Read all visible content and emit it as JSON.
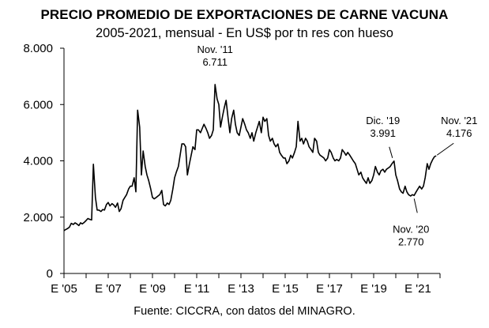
{
  "chart_data": {
    "type": "line",
    "title": "PRECIO PROMEDIO DE EXPORTACIONES DE CARNE VACUNA",
    "subtitle": "2005-2021, mensual - En US$ por tn res con hueso",
    "source": "Fuente: CICCRA, con datos del MINAGRO.",
    "xlabel": "",
    "ylabel": "",
    "ylim": [
      0,
      8000
    ],
    "xlim": [
      2005.0,
      2022.0
    ],
    "grid": false,
    "y_ticks": [
      {
        "value": 0,
        "label": "0"
      },
      {
        "value": 2000,
        "label": "2.000"
      },
      {
        "value": 4000,
        "label": "4.000"
      },
      {
        "value": 6000,
        "label": "6.000"
      },
      {
        "value": 8000,
        "label": "8.000"
      }
    ],
    "x_ticks": [
      {
        "value": 2005,
        "label": "E '05"
      },
      {
        "value": 2007,
        "label": "E '07"
      },
      {
        "value": 2009,
        "label": "E '09"
      },
      {
        "value": 2011,
        "label": "E '11"
      },
      {
        "value": 2013,
        "label": "E '13"
      },
      {
        "value": 2015,
        "label": "E '15"
      },
      {
        "value": 2017,
        "label": "E '17"
      },
      {
        "value": 2019,
        "label": "E '19"
      },
      {
        "value": 2021,
        "label": "E '21"
      }
    ],
    "annotations": [
      {
        "label": "Nov. '11",
        "value_label": "6.711",
        "x": 2011.83,
        "y": 6711,
        "pos": "above"
      },
      {
        "label": "Dic. '19",
        "value_label": "3.991",
        "x": 2019.92,
        "y": 3991,
        "pos": "above-left"
      },
      {
        "label": "Nov. '20",
        "value_label": "2.770",
        "x": 2020.83,
        "y": 2770,
        "pos": "below"
      },
      {
        "label": "Nov. '21",
        "value_label": "4.176",
        "x": 2021.83,
        "y": 4176,
        "pos": "above-right"
      }
    ],
    "series": [
      {
        "color": "#000000",
        "points": [
          [
            2005.0,
            1520
          ],
          [
            2005.08,
            1560
          ],
          [
            2005.17,
            1600
          ],
          [
            2005.25,
            1650
          ],
          [
            2005.33,
            1780
          ],
          [
            2005.42,
            1740
          ],
          [
            2005.5,
            1800
          ],
          [
            2005.58,
            1760
          ],
          [
            2005.67,
            1700
          ],
          [
            2005.75,
            1800
          ],
          [
            2005.83,
            1760
          ],
          [
            2005.92,
            1820
          ],
          [
            2006.0,
            1880
          ],
          [
            2006.08,
            1950
          ],
          [
            2006.17,
            1920
          ],
          [
            2006.25,
            1900
          ],
          [
            2006.33,
            3880
          ],
          [
            2006.42,
            2700
          ],
          [
            2006.5,
            2250
          ],
          [
            2006.58,
            2250
          ],
          [
            2006.67,
            2200
          ],
          [
            2006.75,
            2270
          ],
          [
            2006.83,
            2250
          ],
          [
            2006.92,
            2450
          ],
          [
            2007.0,
            2520
          ],
          [
            2007.08,
            2400
          ],
          [
            2007.17,
            2480
          ],
          [
            2007.25,
            2430
          ],
          [
            2007.33,
            2350
          ],
          [
            2007.42,
            2500
          ],
          [
            2007.5,
            2200
          ],
          [
            2007.58,
            2300
          ],
          [
            2007.67,
            2600
          ],
          [
            2007.75,
            2700
          ],
          [
            2007.83,
            2800
          ],
          [
            2007.92,
            3000
          ],
          [
            2008.0,
            3100
          ],
          [
            2008.08,
            3100
          ],
          [
            2008.17,
            3400
          ],
          [
            2008.25,
            2900
          ],
          [
            2008.33,
            5800
          ],
          [
            2008.42,
            5200
          ],
          [
            2008.5,
            3500
          ],
          [
            2008.58,
            4350
          ],
          [
            2008.67,
            3800
          ],
          [
            2008.75,
            3500
          ],
          [
            2008.83,
            3300
          ],
          [
            2008.92,
            3000
          ],
          [
            2009.0,
            2700
          ],
          [
            2009.08,
            2650
          ],
          [
            2009.17,
            2700
          ],
          [
            2009.25,
            2750
          ],
          [
            2009.33,
            2800
          ],
          [
            2009.42,
            2950
          ],
          [
            2009.5,
            2450
          ],
          [
            2009.58,
            2400
          ],
          [
            2009.67,
            2500
          ],
          [
            2009.75,
            2450
          ],
          [
            2009.83,
            2600
          ],
          [
            2009.92,
            3000
          ],
          [
            2010.0,
            3400
          ],
          [
            2010.08,
            3600
          ],
          [
            2010.17,
            3800
          ],
          [
            2010.25,
            4200
          ],
          [
            2010.33,
            4600
          ],
          [
            2010.42,
            4600
          ],
          [
            2010.5,
            4500
          ],
          [
            2010.58,
            3500
          ],
          [
            2010.67,
            3900
          ],
          [
            2010.75,
            4200
          ],
          [
            2010.83,
            4500
          ],
          [
            2010.92,
            4400
          ],
          [
            2011.0,
            5100
          ],
          [
            2011.08,
            5100
          ],
          [
            2011.17,
            5000
          ],
          [
            2011.25,
            5150
          ],
          [
            2011.33,
            5300
          ],
          [
            2011.42,
            5150
          ],
          [
            2011.5,
            5000
          ],
          [
            2011.58,
            4800
          ],
          [
            2011.67,
            4900
          ],
          [
            2011.75,
            5100
          ],
          [
            2011.83,
            6711
          ],
          [
            2011.92,
            6200
          ],
          [
            2012.0,
            6000
          ],
          [
            2012.08,
            5200
          ],
          [
            2012.17,
            5600
          ],
          [
            2012.25,
            5900
          ],
          [
            2012.33,
            6150
          ],
          [
            2012.42,
            5500
          ],
          [
            2012.5,
            5000
          ],
          [
            2012.58,
            5500
          ],
          [
            2012.67,
            5800
          ],
          [
            2012.75,
            5300
          ],
          [
            2012.83,
            5000
          ],
          [
            2012.92,
            4900
          ],
          [
            2013.0,
            5200
          ],
          [
            2013.08,
            5500
          ],
          [
            2013.17,
            5300
          ],
          [
            2013.25,
            5100
          ],
          [
            2013.33,
            5000
          ],
          [
            2013.42,
            4800
          ],
          [
            2013.5,
            5000
          ],
          [
            2013.58,
            4700
          ],
          [
            2013.67,
            5000
          ],
          [
            2013.75,
            5200
          ],
          [
            2013.83,
            5400
          ],
          [
            2013.92,
            5000
          ],
          [
            2014.0,
            5550
          ],
          [
            2014.08,
            5400
          ],
          [
            2014.17,
            5500
          ],
          [
            2014.25,
            4900
          ],
          [
            2014.33,
            4700
          ],
          [
            2014.42,
            4800
          ],
          [
            2014.5,
            4600
          ],
          [
            2014.58,
            4500
          ],
          [
            2014.67,
            4600
          ],
          [
            2014.75,
            4300
          ],
          [
            2014.83,
            4200
          ],
          [
            2014.92,
            4100
          ],
          [
            2015.0,
            4100
          ],
          [
            2015.08,
            3900
          ],
          [
            2015.17,
            4000
          ],
          [
            2015.25,
            4200
          ],
          [
            2015.33,
            4100
          ],
          [
            2015.42,
            4300
          ],
          [
            2015.5,
            4500
          ],
          [
            2015.58,
            5400
          ],
          [
            2015.67,
            4700
          ],
          [
            2015.75,
            4800
          ],
          [
            2015.83,
            4600
          ],
          [
            2015.92,
            4800
          ],
          [
            2016.0,
            4700
          ],
          [
            2016.08,
            4500
          ],
          [
            2016.17,
            4400
          ],
          [
            2016.25,
            4300
          ],
          [
            2016.33,
            4800
          ],
          [
            2016.42,
            4700
          ],
          [
            2016.5,
            4300
          ],
          [
            2016.58,
            4200
          ],
          [
            2016.67,
            4150
          ],
          [
            2016.75,
            4100
          ],
          [
            2016.83,
            4000
          ],
          [
            2016.92,
            4100
          ],
          [
            2017.0,
            4400
          ],
          [
            2017.08,
            4300
          ],
          [
            2017.17,
            4100
          ],
          [
            2017.25,
            4000
          ],
          [
            2017.33,
            4050
          ],
          [
            2017.42,
            4000
          ],
          [
            2017.5,
            4100
          ],
          [
            2017.58,
            4400
          ],
          [
            2017.67,
            4300
          ],
          [
            2017.75,
            4200
          ],
          [
            2017.83,
            4300
          ],
          [
            2017.92,
            4200
          ],
          [
            2018.0,
            4100
          ],
          [
            2018.08,
            4000
          ],
          [
            2018.17,
            3900
          ],
          [
            2018.25,
            3700
          ],
          [
            2018.33,
            3500
          ],
          [
            2018.42,
            3600
          ],
          [
            2018.5,
            3400
          ],
          [
            2018.58,
            3300
          ],
          [
            2018.67,
            3200
          ],
          [
            2018.75,
            3400
          ],
          [
            2018.83,
            3200
          ],
          [
            2018.92,
            3300
          ],
          [
            2019.0,
            3500
          ],
          [
            2019.08,
            3800
          ],
          [
            2019.17,
            3600
          ],
          [
            2019.25,
            3500
          ],
          [
            2019.33,
            3650
          ],
          [
            2019.42,
            3700
          ],
          [
            2019.5,
            3600
          ],
          [
            2019.58,
            3700
          ],
          [
            2019.67,
            3750
          ],
          [
            2019.75,
            3800
          ],
          [
            2019.83,
            3900
          ],
          [
            2019.92,
            3991
          ],
          [
            2020.0,
            3500
          ],
          [
            2020.08,
            3300
          ],
          [
            2020.17,
            3000
          ],
          [
            2020.25,
            2900
          ],
          [
            2020.33,
            2850
          ],
          [
            2020.42,
            3100
          ],
          [
            2020.5,
            2900
          ],
          [
            2020.58,
            2800
          ],
          [
            2020.67,
            2750
          ],
          [
            2020.75,
            2800
          ],
          [
            2020.83,
            2770
          ],
          [
            2020.92,
            2900
          ],
          [
            2021.0,
            3000
          ],
          [
            2021.08,
            3100
          ],
          [
            2021.17,
            3000
          ],
          [
            2021.25,
            3100
          ],
          [
            2021.33,
            3400
          ],
          [
            2021.42,
            3900
          ],
          [
            2021.5,
            3700
          ],
          [
            2021.58,
            3900
          ],
          [
            2021.67,
            4050
          ],
          [
            2021.75,
            4150
          ],
          [
            2021.83,
            4176
          ]
        ]
      }
    ]
  }
}
